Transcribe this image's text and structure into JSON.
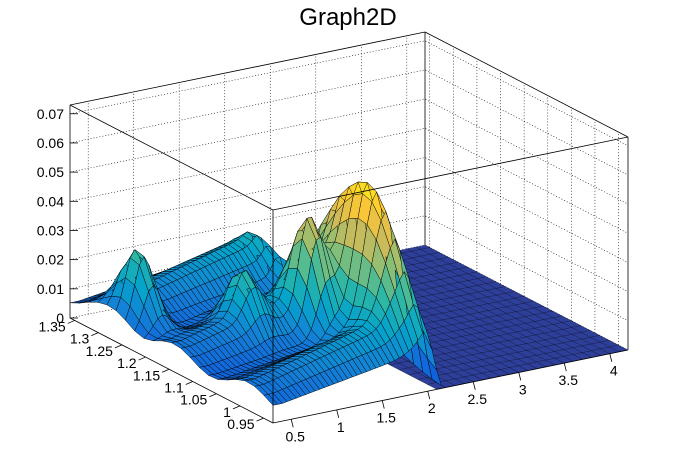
{
  "chart_data": {
    "type": "surface3d",
    "title": "Graph2D",
    "x_ticks": [
      "0.5",
      "1",
      "1.5",
      "2",
      "2.5",
      "3",
      "3.5",
      "4"
    ],
    "y_ticks": [
      "0.95",
      "1",
      "1.05",
      "1.1",
      "1.15",
      "1.2",
      "1.25",
      "1.3",
      "1.35"
    ],
    "z_ticks": [
      "0",
      "0.01",
      "0.02",
      "0.03",
      "0.04",
      "0.05",
      "0.06",
      "0.07"
    ],
    "xlim": [
      0.3,
      4.2
    ],
    "ylim": [
      0.93,
      1.36
    ],
    "zlim": [
      0,
      0.073
    ],
    "grid": true,
    "colormap": [
      "#352a87",
      "#0f5cdd",
      "#1481d6",
      "#06a4ca",
      "#2eb7a4",
      "#87bf77",
      "#d1bb59",
      "#fec832",
      "#f9fb0e"
    ],
    "surface_peaks": [
      {
        "x": 1.9,
        "y": 1.05,
        "z": 0.07
      },
      {
        "x": 0.5,
        "y": 1.25,
        "z": 0.034
      },
      {
        "x": 1.1,
        "y": 1.15,
        "z": 0.02
      },
      {
        "x": 1.6,
        "y": 1.1,
        "z": 0.045
      }
    ]
  }
}
